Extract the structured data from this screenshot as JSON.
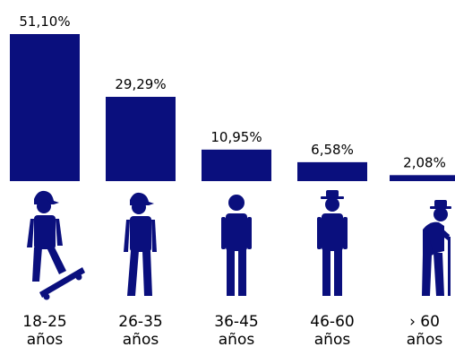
{
  "chart_data": {
    "type": "bar",
    "categories": [
      {
        "label_line1": "18-25",
        "label_line2": "años",
        "icon": "skateboarder-with-cap-icon"
      },
      {
        "label_line1": "26-35",
        "label_line2": "años",
        "icon": "walking-person-with-cap-icon"
      },
      {
        "label_line1": "36-45",
        "label_line2": "años",
        "icon": "standing-person-icon"
      },
      {
        "label_line1": "46-60",
        "label_line2": "años",
        "icon": "person-with-hat-icon"
      },
      {
        "label_line1": "› 60",
        "label_line2": "años",
        "icon": "elderly-person-with-cane-icon"
      }
    ],
    "values": [
      51.1,
      29.29,
      10.95,
      6.58,
      2.08
    ],
    "value_labels": [
      "51,10%",
      "29,29%",
      "10,95%",
      "6,58%",
      "2,08%"
    ],
    "unit": "%",
    "ylim": [
      0,
      51.1
    ],
    "grid": false,
    "colors": {
      "bar": "#0a0f7d",
      "text": "#000000"
    }
  }
}
